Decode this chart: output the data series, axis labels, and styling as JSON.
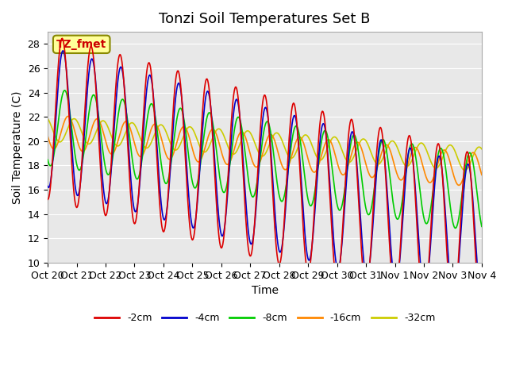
{
  "title": "Tonzi Soil Temperatures Set B",
  "xlabel": "Time",
  "ylabel": "Soil Temperature (C)",
  "ylim": [
    10,
    29
  ],
  "yticks": [
    10,
    12,
    14,
    16,
    18,
    20,
    22,
    24,
    26,
    28
  ],
  "plot_bg_color": "#e8e8e8",
  "legend_labels": [
    "-2cm",
    "-4cm",
    "-8cm",
    "-16cm",
    "-32cm"
  ],
  "legend_colors": [
    "#dd0000",
    "#0000cc",
    "#00cc00",
    "#ff8800",
    "#cccc00"
  ],
  "annotation_text": "TZ_fmet",
  "annotation_bg": "#ffff99",
  "annotation_border": "#888800",
  "xtick_labels": [
    "Oct 20",
    "Oct 21",
    "Oct 22",
    "Oct 23",
    "Oct 24",
    "Oct 25",
    "Oct 26",
    "Oct 27",
    "Oct 28",
    "Oct 29",
    "Oct 30",
    "Oct 31",
    "Nov 1",
    "Nov 2",
    "Nov 3",
    "Nov 4"
  ],
  "n_days": 15,
  "title_fontsize": 13,
  "axis_fontsize": 10,
  "tick_fontsize": 9
}
